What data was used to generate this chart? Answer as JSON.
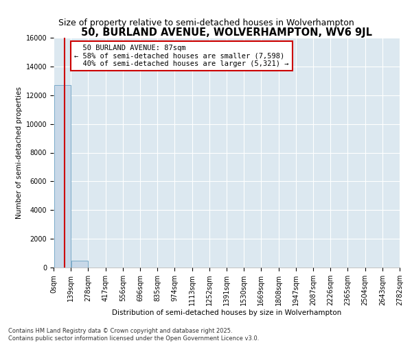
{
  "title": "50, BURLAND AVENUE, WOLVERHAMPTON, WV6 9JL",
  "subtitle": "Size of property relative to semi-detached houses in Wolverhampton",
  "xlabel": "Distribution of semi-detached houses by size in Wolverhampton",
  "ylabel": "Number of semi-detached properties",
  "footnote": "Contains HM Land Registry data © Crown copyright and database right 2025.\nContains public sector information licensed under the Open Government Licence v3.0.",
  "bin_edges": [
    0,
    139,
    278,
    417,
    556,
    696,
    835,
    974,
    1113,
    1252,
    1391,
    1530,
    1669,
    1808,
    1947,
    2087,
    2226,
    2365,
    2504,
    2643,
    2782
  ],
  "bin_labels": [
    "0sqm",
    "139sqm",
    "278sqm",
    "417sqm",
    "556sqm",
    "696sqm",
    "835sqm",
    "974sqm",
    "1113sqm",
    "1252sqm",
    "1391sqm",
    "1530sqm",
    "1669sqm",
    "1808sqm",
    "1947sqm",
    "2087sqm",
    "2226sqm",
    "2365sqm",
    "2504sqm",
    "2643sqm",
    "2782sqm"
  ],
  "bar_heights": [
    12700,
    500,
    0,
    0,
    0,
    0,
    0,
    0,
    0,
    0,
    0,
    0,
    0,
    0,
    0,
    0,
    0,
    0,
    0,
    0
  ],
  "bar_color": "#c8d8e8",
  "bar_edge_color": "#7aaac8",
  "property_size": 87,
  "property_label": "50 BURLAND AVENUE: 87sqm",
  "pct_smaller": 58,
  "pct_smaller_count": 7598,
  "pct_larger": 40,
  "pct_larger_count": 5321,
  "vline_color": "#cc0000",
  "annotation_box_color": "#cc0000",
  "ylim": [
    0,
    16000
  ],
  "yticks": [
    0,
    2000,
    4000,
    6000,
    8000,
    10000,
    12000,
    14000,
    16000
  ],
  "bg_color": "#ffffff",
  "plot_bg_color": "#dce8f0",
  "grid_color": "#ffffff",
  "title_fontsize": 10.5,
  "subtitle_fontsize": 9,
  "axis_label_fontsize": 7.5,
  "tick_fontsize": 7,
  "footnote_fontsize": 6
}
